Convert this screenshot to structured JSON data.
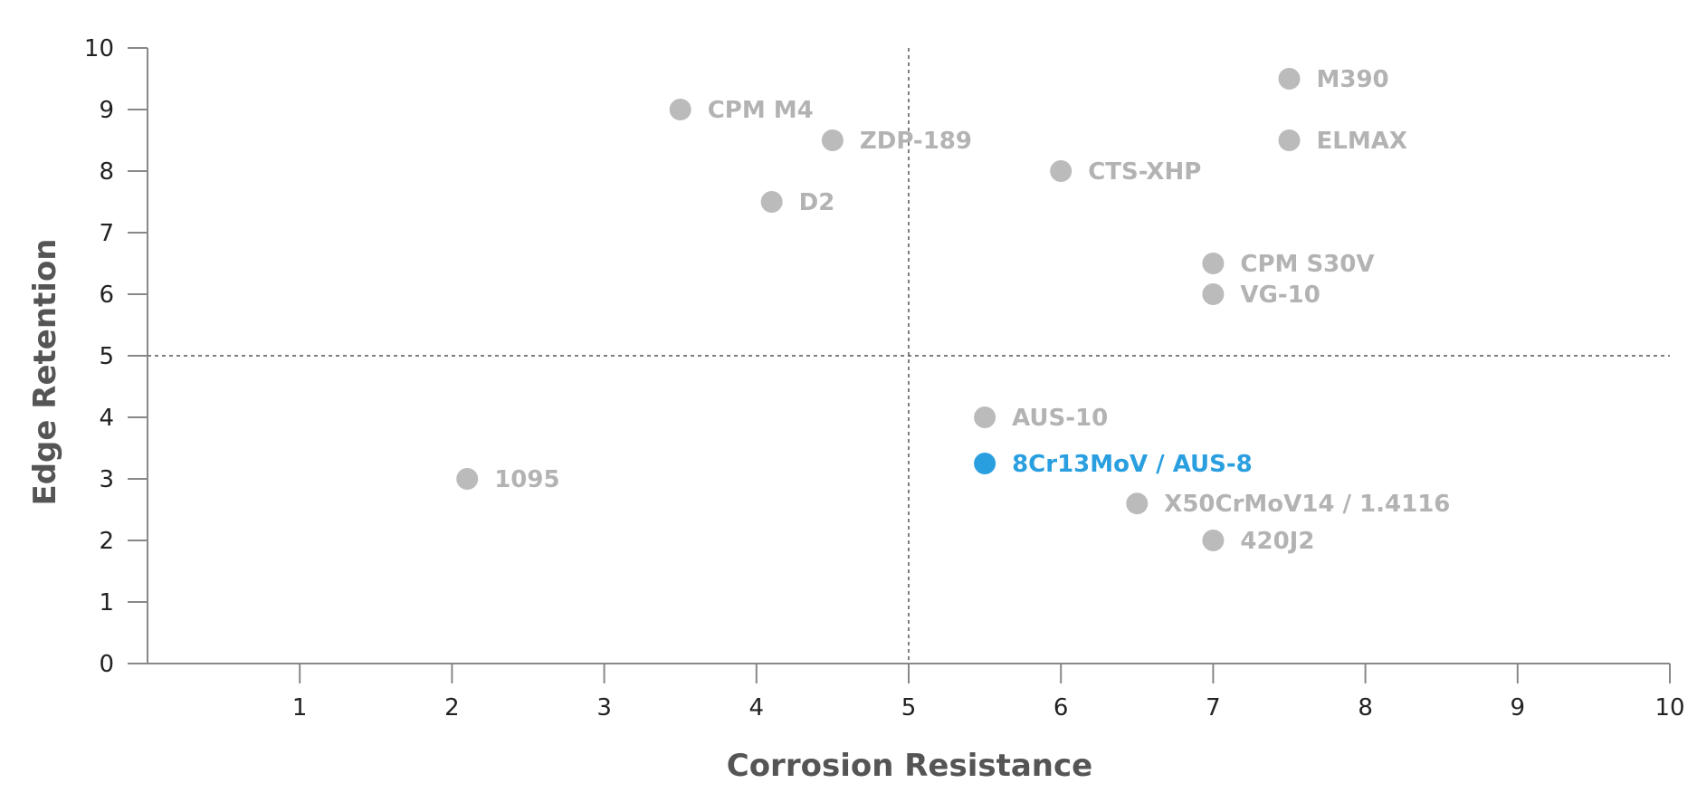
{
  "chart_data": {
    "type": "scatter",
    "title": "",
    "xlabel": "Corrosion Resistance",
    "ylabel": "Edge Retention",
    "xlim": [
      0,
      10
    ],
    "ylim": [
      0,
      10
    ],
    "x_ticks": [
      "1",
      "2",
      "3",
      "4",
      "5",
      "6",
      "7",
      "8",
      "9",
      "10"
    ],
    "y_ticks": [
      "0",
      "1",
      "2",
      "3",
      "4",
      "5",
      "6",
      "7",
      "8",
      "9",
      "10"
    ],
    "reference_lines": {
      "x": 5,
      "y": 5
    },
    "grid": false,
    "legend": "none",
    "points": [
      {
        "label": "M390",
        "x": 7.5,
        "y": 9.5,
        "highlight": false
      },
      {
        "label": "CPM M4",
        "x": 3.5,
        "y": 9.0,
        "highlight": false
      },
      {
        "label": "ZDP-189",
        "x": 4.5,
        "y": 8.5,
        "highlight": false
      },
      {
        "label": "ELMAX",
        "x": 7.5,
        "y": 8.5,
        "highlight": false
      },
      {
        "label": "CTS-XHP",
        "x": 6.0,
        "y": 8.0,
        "highlight": false
      },
      {
        "label": "D2",
        "x": 4.1,
        "y": 7.5,
        "highlight": false
      },
      {
        "label": "CPM S30V",
        "x": 7.0,
        "y": 6.5,
        "highlight": false
      },
      {
        "label": "VG-10",
        "x": 7.0,
        "y": 6.0,
        "highlight": false
      },
      {
        "label": "AUS-10",
        "x": 5.5,
        "y": 4.0,
        "highlight": false
      },
      {
        "label": "8Cr13MoV / AUS-8",
        "x": 5.5,
        "y": 3.25,
        "highlight": true
      },
      {
        "label": "1095",
        "x": 2.1,
        "y": 3.0,
        "highlight": false
      },
      {
        "label": "X50CrMoV14 / 1.4116",
        "x": 6.5,
        "y": 2.6,
        "highlight": false
      },
      {
        "label": "420J2",
        "x": 7.0,
        "y": 2.0,
        "highlight": false
      }
    ]
  },
  "colors": {
    "default_point": "#bbbbbb",
    "default_label": "#b3b3b3",
    "highlight": "#2a9fe0",
    "axis": "#888888",
    "reference_line": "#555555"
  }
}
